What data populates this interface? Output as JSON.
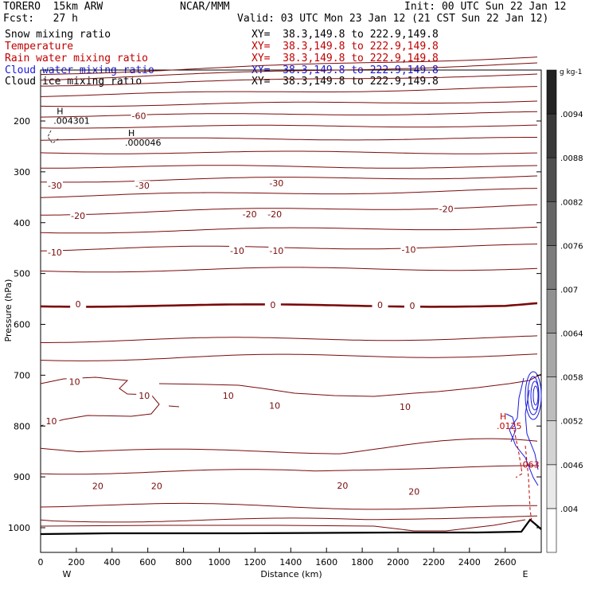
{
  "header": {
    "model": "TORERO  15km ARW",
    "center": "NCAR/MMM",
    "init": "Init: 00 UTC Sun 22 Jan 12",
    "fcst": "Fcst:   27 h",
    "valid": "Valid: 03 UTC Mon 23 Jan 12 (21 CST Sun 22 Jan 12)"
  },
  "fields": [
    {
      "name": "Snow mixing ratio",
      "xy": "",
      "color": "#000000"
    },
    {
      "name": "Temperature",
      "xy": "XY=  38.3,149.8 to 222.9,149.8",
      "color": "#c00000"
    },
    {
      "name": "Rain water mixing ratio",
      "xy": "XY=  38.3,149.8 to 222.9,149.8",
      "color": "#c00000"
    },
    {
      "name": "Cloud water mixing ratio",
      "xy": "XY=  38.3,149.8 to 222.9,149.8",
      "color": "#1a1adc"
    },
    {
      "name": "Cloud ice mixing ratio",
      "xy": "XY=  38.3,149.8 to 222.9,149.8",
      "color": "#000000"
    }
  ],
  "snow_xy": "XY=  38.3,149.8 to 222.9,149.8",
  "chart_data": {
    "type": "contour",
    "xlabel": "Distance (km)",
    "ylabel": "Pressure (hPa)",
    "xlim": [
      0,
      2760
    ],
    "ylim": [
      1050,
      100
    ],
    "xticks": [
      0,
      200,
      400,
      600,
      800,
      1000,
      1200,
      1400,
      1600,
      1800,
      2000,
      2200,
      2400,
      2600
    ],
    "yticks": [
      200,
      300,
      400,
      500,
      600,
      700,
      800,
      900,
      1000
    ],
    "x_end_labels": {
      "left": "W",
      "right": "E"
    },
    "temperature_contour_labels": [
      {
        "value": "-60",
        "x": 550,
        "p": 190
      },
      {
        "value": "-30",
        "x": 80,
        "p": 327
      },
      {
        "value": "-30",
        "x": 570,
        "p": 327
      },
      {
        "value": "-30",
        "x": 1320,
        "p": 322
      },
      {
        "value": "-20",
        "x": 210,
        "p": 386
      },
      {
        "value": "-20",
        "x": 1170,
        "p": 383
      },
      {
        "value": "-20",
        "x": 1310,
        "p": 383
      },
      {
        "value": "-20",
        "x": 2270,
        "p": 373
      },
      {
        "value": "-10",
        "x": 80,
        "p": 458
      },
      {
        "value": "-10",
        "x": 1100,
        "p": 455
      },
      {
        "value": "-10",
        "x": 1320,
        "p": 455
      },
      {
        "value": "-10",
        "x": 2060,
        "p": 453
      },
      {
        "value": "0",
        "x": 210,
        "p": 560
      },
      {
        "value": "0",
        "x": 1300,
        "p": 562
      },
      {
        "value": "0",
        "x": 1900,
        "p": 562
      },
      {
        "value": "0",
        "x": 2080,
        "p": 563
      },
      {
        "value": "10",
        "x": 190,
        "p": 713
      },
      {
        "value": "10",
        "x": 580,
        "p": 740
      },
      {
        "value": "10",
        "x": 1050,
        "p": 740
      },
      {
        "value": "10",
        "x": 1310,
        "p": 760
      },
      {
        "value": "10",
        "x": 2040,
        "p": 762
      },
      {
        "value": "10",
        "x": 60,
        "p": 790
      },
      {
        "value": "20",
        "x": 320,
        "p": 918
      },
      {
        "value": "20",
        "x": 650,
        "p": 918
      },
      {
        "value": "20",
        "x": 1690,
        "p": 917
      },
      {
        "value": "20",
        "x": 2090,
        "p": 929
      }
    ],
    "extrema_labels": [
      {
        "kind": "H",
        "value": ".004301",
        "x": 90,
        "p": 190
      },
      {
        "kind": "H",
        "value": ".000046",
        "x": 490,
        "p": 233
      },
      {
        "kind": "H",
        "value": ".0125",
        "x": 2570,
        "p": 790
      },
      {
        "kind": "",
        "value": ".063",
        "x": 2700,
        "p": 866
      }
    ],
    "colorbar": {
      "unit": "g kg-1",
      "ticks": [
        ".004",
        ".0046",
        ".0052",
        ".0058",
        ".0064",
        ".007",
        ".0076",
        ".0082",
        ".0088",
        ".0094"
      ],
      "values": [
        0.004,
        0.0046,
        0.0052,
        0.0058,
        0.0064,
        0.007,
        0.0076,
        0.0082,
        0.0088,
        0.0094
      ]
    }
  }
}
